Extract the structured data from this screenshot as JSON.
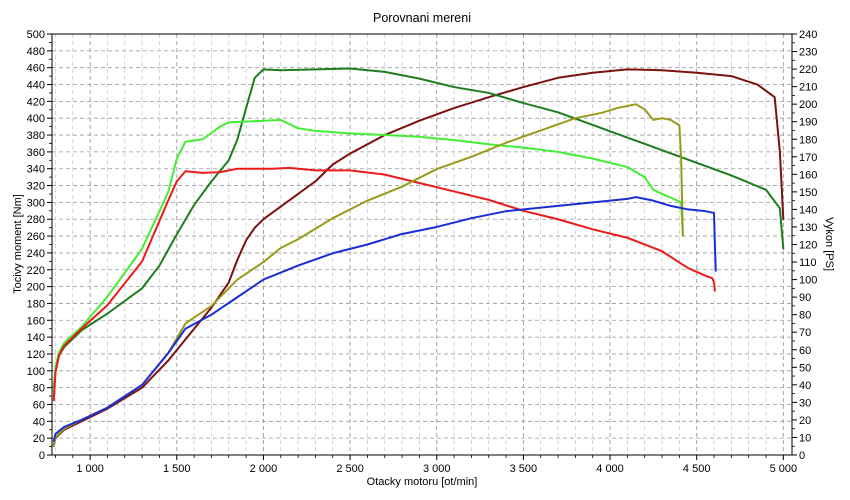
{
  "chart_data": {
    "type": "line",
    "title": "Porovnani mereni",
    "xlabel": "Otacky motoru [ot/min]",
    "ylabel_left": "Tocivy moment [Nm]",
    "ylabel_right": "Vykon [PS]",
    "xlim": [
      780,
      5050
    ],
    "ylim_left": [
      0,
      500
    ],
    "ylim_right": [
      0,
      240
    ],
    "x_ticks": [
      1000,
      1500,
      2000,
      2500,
      3000,
      3500,
      4000,
      4500,
      5000
    ],
    "x_tick_labels": [
      "1 000",
      "1 500",
      "2 000",
      "2 500",
      "3 000",
      "3 500",
      "4 000",
      "4 500",
      "5 000"
    ],
    "y_left_ticks": [
      0,
      20,
      40,
      60,
      80,
      100,
      120,
      140,
      160,
      180,
      200,
      220,
      240,
      260,
      280,
      300,
      320,
      340,
      360,
      380,
      400,
      420,
      440,
      460,
      480,
      500
    ],
    "y_right_ticks": [
      0,
      10,
      20,
      30,
      40,
      50,
      60,
      70,
      80,
      90,
      100,
      110,
      120,
      130,
      140,
      150,
      160,
      170,
      180,
      190,
      200,
      210,
      220,
      230,
      240
    ],
    "grid": true,
    "legend": "none",
    "series": [
      {
        "color": "#7b1210",
        "axis": "left",
        "x": [
          790,
          800,
          850,
          950,
          1100,
          1300,
          1450,
          1600,
          1700,
          1800,
          1850,
          1900,
          1950,
          2000,
          2100,
          2200,
          2300,
          2400,
          2500,
          2700,
          2900,
          3100,
          3300,
          3500,
          3700,
          3900,
          4100,
          4300,
          4500,
          4700,
          4850,
          4950,
          4980,
          5000
        ],
        "y": [
          12,
          20,
          30,
          40,
          55,
          80,
          112,
          150,
          175,
          205,
          232,
          255,
          270,
          280,
          295,
          310,
          325,
          345,
          358,
          380,
          397,
          412,
          425,
          437,
          448,
          454,
          458,
          457,
          454,
          450,
          440,
          425,
          360,
          280
        ]
      },
      {
        "color": "#1e7d1e",
        "axis": "left",
        "x": [
          790,
          800,
          820,
          850,
          950,
          1100,
          1300,
          1400,
          1500,
          1600,
          1700,
          1800,
          1850,
          1900,
          1950,
          2000,
          2100,
          2300,
          2500,
          2700,
          2900,
          3100,
          3300,
          3500,
          3700,
          3900,
          4100,
          4300,
          4500,
          4700,
          4900,
          4980,
          5000
        ],
        "y": [
          80,
          100,
          118,
          128,
          148,
          168,
          198,
          225,
          262,
          297,
          325,
          350,
          375,
          412,
          448,
          458,
          457,
          458,
          459,
          455,
          447,
          437,
          430,
          418,
          407,
          392,
          377,
          362,
          347,
          332,
          315,
          293,
          245
        ]
      },
      {
        "color": "#44ee33",
        "axis": "left",
        "x": [
          790,
          800,
          820,
          850,
          950,
          1100,
          1300,
          1450,
          1500,
          1550,
          1650,
          1750,
          1800,
          1900,
          2000,
          2100,
          2200,
          2300,
          2500,
          2700,
          2900,
          3100,
          3300,
          3500,
          3700,
          3900,
          4100,
          4200,
          4250,
          4300,
          4380,
          4410,
          4420
        ],
        "y": [
          75,
          105,
          122,
          133,
          152,
          188,
          245,
          312,
          352,
          372,
          375,
          390,
          395,
          396,
          397,
          398,
          388,
          385,
          382,
          380,
          378,
          374,
          369,
          365,
          360,
          352,
          342,
          330,
          315,
          310,
          303,
          300,
          262
        ]
      },
      {
        "color": "#ee1a1a",
        "axis": "left",
        "x": [
          790,
          800,
          820,
          850,
          950,
          1100,
          1300,
          1450,
          1500,
          1550,
          1650,
          1750,
          1850,
          1950,
          2050,
          2150,
          2300,
          2500,
          2700,
          2900,
          3100,
          3300,
          3500,
          3700,
          3900,
          4100,
          4300,
          4450,
          4550,
          4590,
          4600,
          4605
        ],
        "y": [
          65,
          98,
          118,
          130,
          150,
          178,
          230,
          302,
          325,
          337,
          335,
          336,
          340,
          340,
          340,
          341,
          338,
          338,
          333,
          323,
          313,
          303,
          290,
          280,
          268,
          258,
          242,
          222,
          213,
          210,
          205,
          195
        ]
      },
      {
        "color": "#9a9a1a",
        "axis": "right",
        "x": [
          790,
          800,
          850,
          950,
          1100,
          1300,
          1450,
          1550,
          1700,
          1850,
          2000,
          2100,
          2200,
          2400,
          2600,
          2800,
          3000,
          3200,
          3400,
          3600,
          3800,
          3950,
          4050,
          4150,
          4200,
          4250,
          4300,
          4350,
          4400,
          4410,
          4420
        ],
        "y": [
          5,
          10,
          15,
          20,
          27,
          40,
          58,
          75,
          85,
          100,
          110,
          118,
          123,
          135,
          145,
          153,
          163,
          170,
          178,
          185,
          192,
          195,
          198,
          200,
          197,
          191,
          192,
          191,
          188,
          170,
          125
        ]
      },
      {
        "color": "#1a2ed6",
        "axis": "right",
        "x": [
          790,
          800,
          850,
          950,
          1100,
          1300,
          1450,
          1550,
          1700,
          1850,
          2000,
          2200,
          2400,
          2600,
          2800,
          3000,
          3200,
          3400,
          3600,
          3800,
          4000,
          4100,
          4150,
          4250,
          4350,
          4450,
          4550,
          4600,
          4605,
          4610
        ],
        "y": [
          8,
          12,
          16,
          20,
          27,
          40,
          58,
          72,
          80,
          90,
          100,
          108,
          115,
          120,
          126,
          130,
          135,
          139,
          141,
          143,
          145,
          146,
          147,
          145,
          142,
          140,
          139,
          138,
          120,
          105
        ]
      }
    ]
  }
}
